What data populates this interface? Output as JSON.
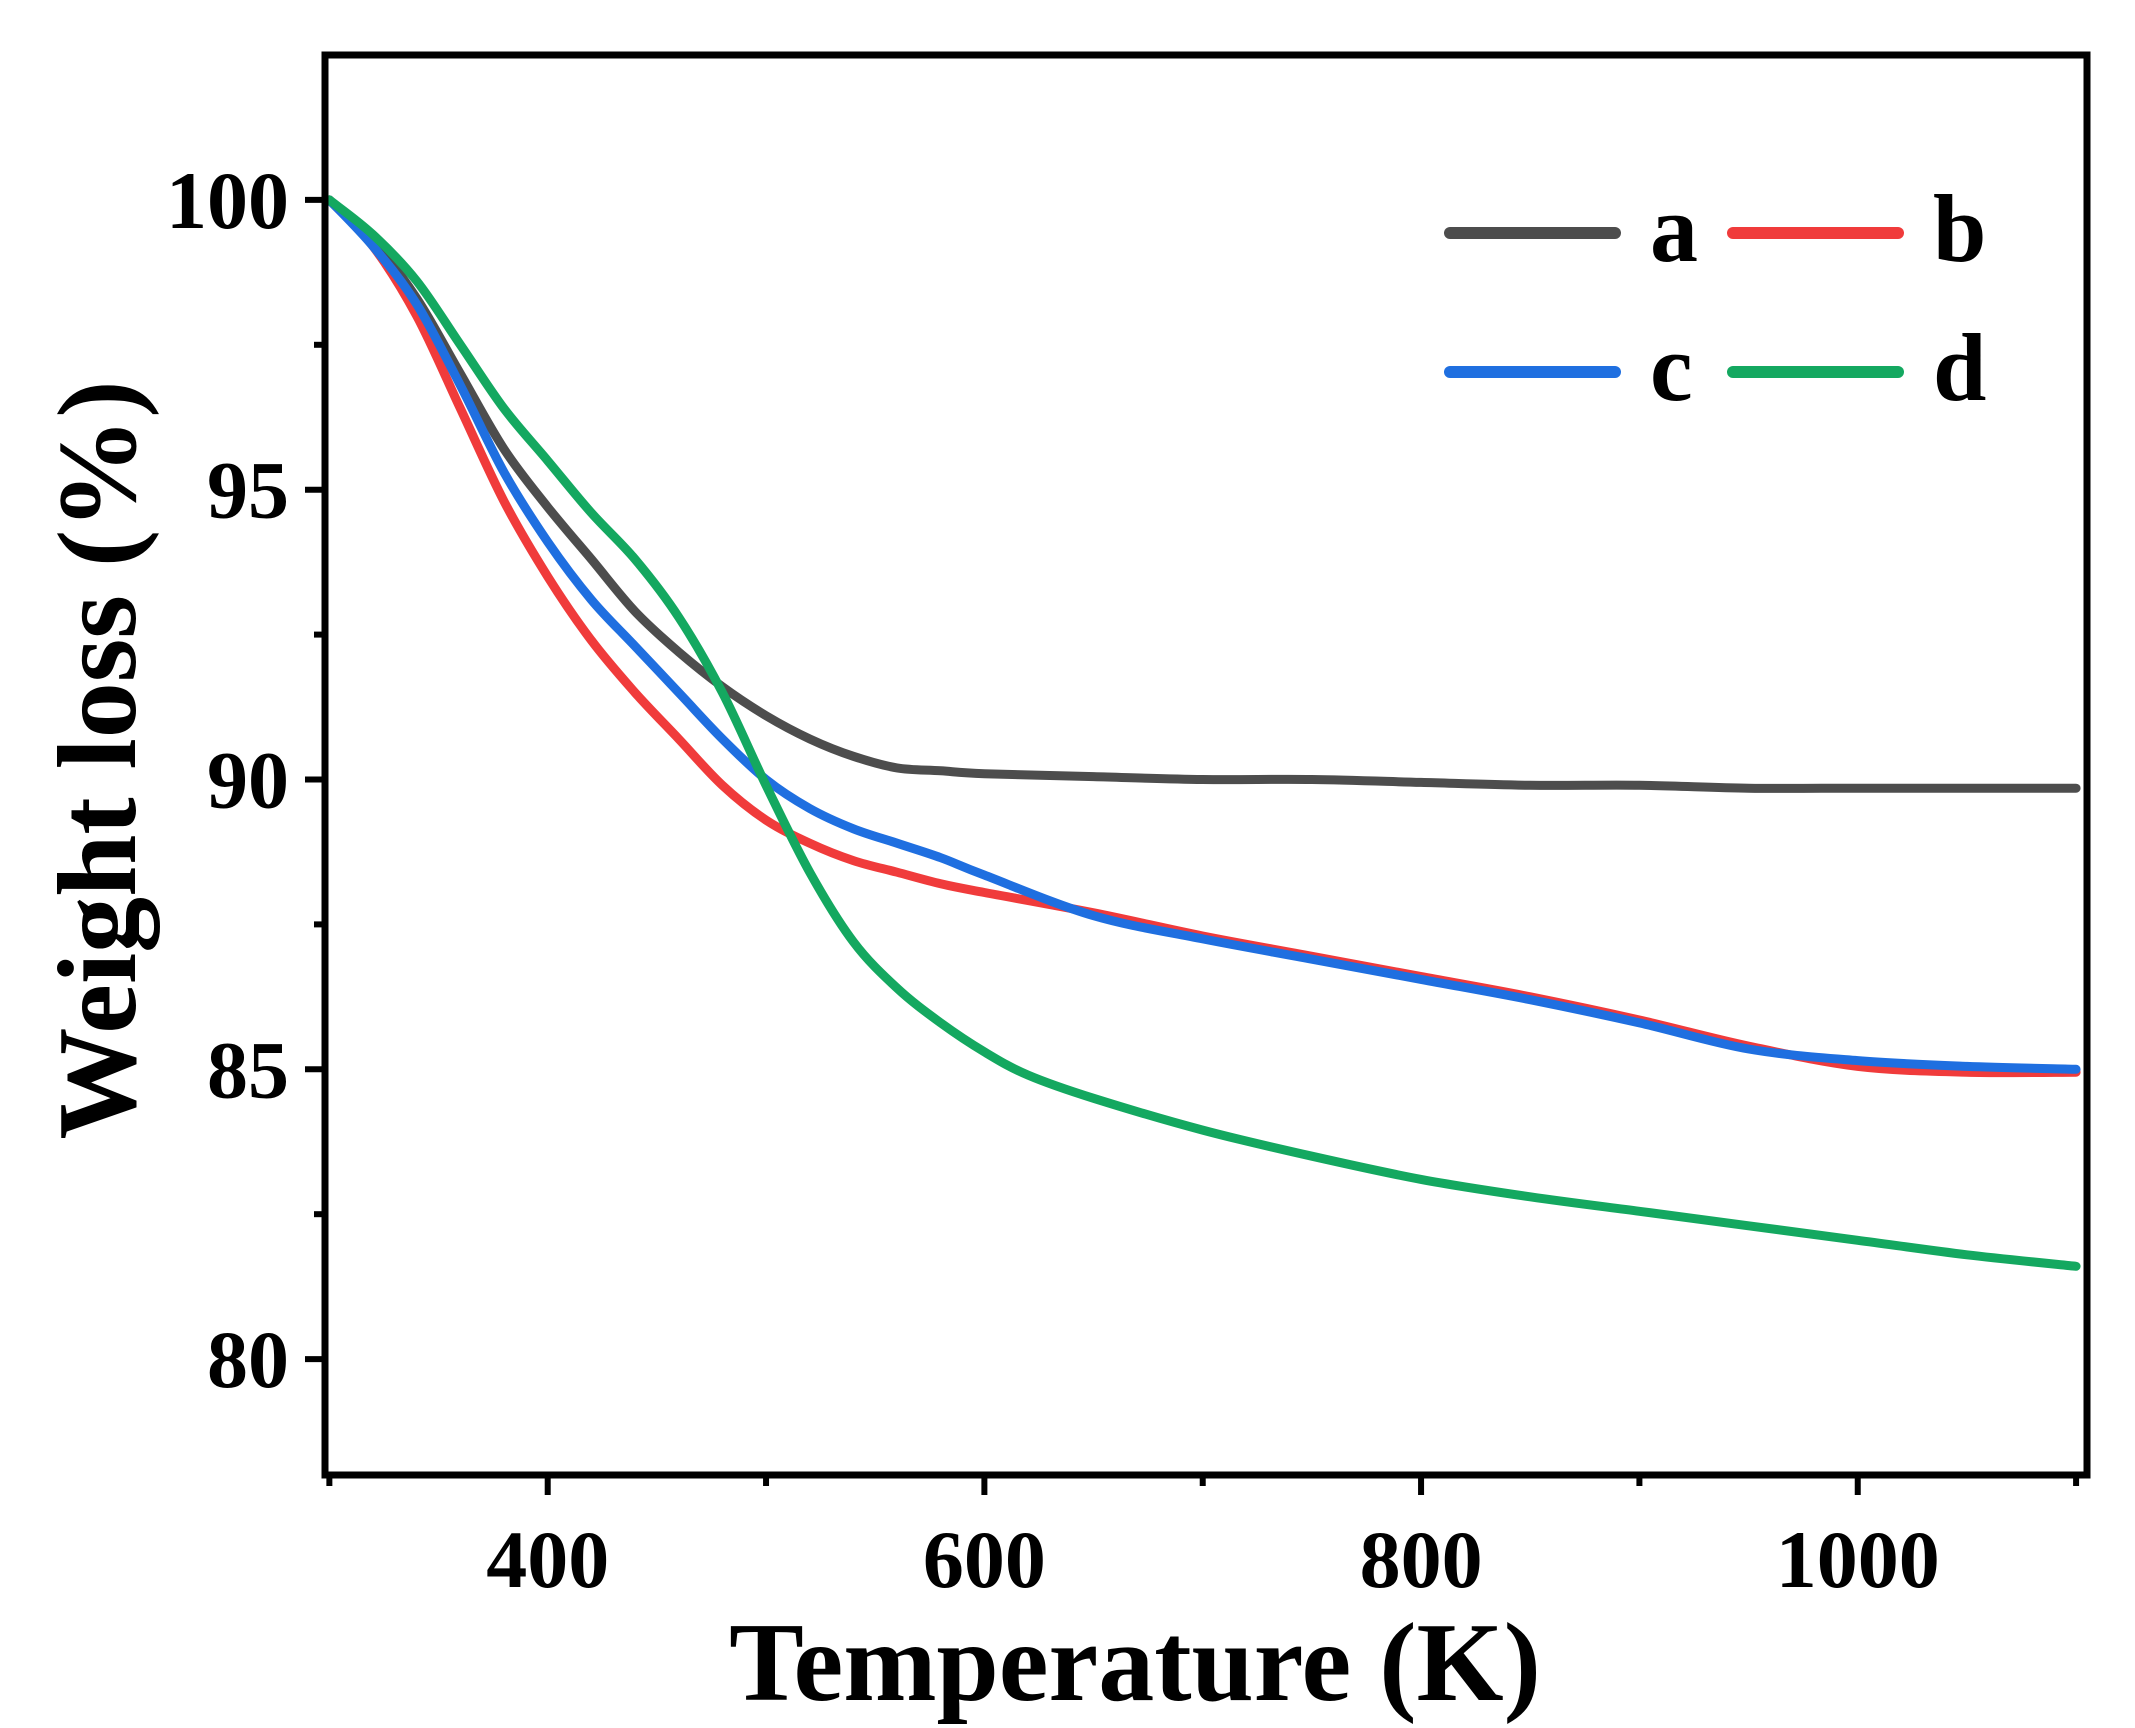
{
  "chart_data": {
    "type": "line",
    "title": "",
    "xlabel": "Temperature (K)",
    "ylabel": "Weight loss (%)",
    "xlim": [
      298,
      1105
    ],
    "ylim": [
      78,
      102.5
    ],
    "xticks": [
      400,
      600,
      800,
      1000
    ],
    "xticks_minor": [
      300,
      500,
      700,
      900,
      1100
    ],
    "yticks": [
      80,
      85,
      90,
      95,
      100
    ],
    "yticks_minor": [
      82.5,
      87.5,
      92.5,
      97.5
    ],
    "grid": false,
    "legend_position": "top-right",
    "series": [
      {
        "name": "a",
        "color": "#4d4d4d",
        "x": [
          300,
          320,
          340,
          360,
          380,
          400,
          420,
          440,
          460,
          480,
          500,
          520,
          540,
          560,
          580,
          600,
          650,
          700,
          750,
          800,
          850,
          900,
          950,
          1000,
          1050,
          1100
        ],
        "y": [
          100,
          99.3,
          98.3,
          97.0,
          95.7,
          94.7,
          93.8,
          92.9,
          92.2,
          91.6,
          91.1,
          90.7,
          90.4,
          90.2,
          90.15,
          90.1,
          90.05,
          90.0,
          90.0,
          89.95,
          89.9,
          89.9,
          89.85,
          89.85,
          89.85,
          89.85
        ]
      },
      {
        "name": "b",
        "color": "#f03b3b",
        "x": [
          300,
          320,
          340,
          360,
          380,
          400,
          420,
          440,
          460,
          480,
          500,
          520,
          540,
          560,
          580,
          600,
          650,
          700,
          750,
          800,
          850,
          900,
          950,
          1000,
          1050,
          1100
        ],
        "y": [
          100,
          99.2,
          98.0,
          96.4,
          94.8,
          93.5,
          92.4,
          91.5,
          90.7,
          89.9,
          89.3,
          88.9,
          88.6,
          88.4,
          88.2,
          88.05,
          87.7,
          87.3,
          86.95,
          86.6,
          86.25,
          85.85,
          85.4,
          85.05,
          84.95,
          84.95
        ]
      },
      {
        "name": "c",
        "color": "#1f6fe0",
        "x": [
          300,
          320,
          340,
          360,
          380,
          400,
          420,
          440,
          460,
          480,
          500,
          520,
          540,
          560,
          580,
          600,
          650,
          700,
          750,
          800,
          850,
          900,
          950,
          1000,
          1050,
          1100
        ],
        "y": [
          100,
          99.2,
          98.2,
          96.8,
          95.3,
          94.1,
          93.1,
          92.3,
          91.5,
          90.7,
          90.0,
          89.5,
          89.15,
          88.9,
          88.65,
          88.35,
          87.65,
          87.25,
          86.9,
          86.55,
          86.2,
          85.8,
          85.35,
          85.15,
          85.05,
          85.0
        ]
      },
      {
        "name": "d",
        "color": "#14a860",
        "x": [
          300,
          320,
          340,
          360,
          380,
          400,
          420,
          440,
          460,
          480,
          500,
          520,
          540,
          560,
          580,
          600,
          620,
          650,
          700,
          750,
          800,
          850,
          900,
          950,
          1000,
          1050,
          1100
        ],
        "y": [
          100,
          99.4,
          98.6,
          97.5,
          96.4,
          95.5,
          94.6,
          93.8,
          92.8,
          91.5,
          89.9,
          88.4,
          87.2,
          86.4,
          85.8,
          85.3,
          84.9,
          84.5,
          83.95,
          83.5,
          83.1,
          82.8,
          82.55,
          82.3,
          82.05,
          81.8,
          81.6
        ]
      }
    ]
  }
}
